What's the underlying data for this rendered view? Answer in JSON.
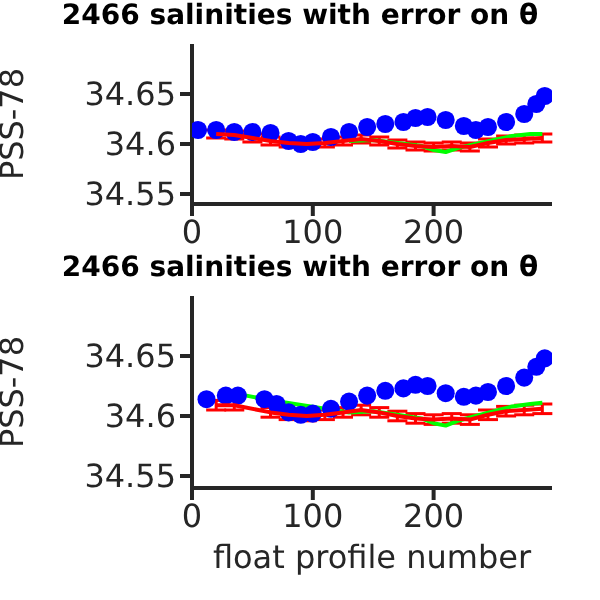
{
  "chart_data": [
    {
      "type": "line",
      "title": "2466 salinities with error on θ",
      "ylabel": "PSS-78",
      "xlim": [
        0,
        298
      ],
      "xticks": [
        0,
        100,
        200
      ],
      "ylim": [
        34.54,
        34.7
      ],
      "yticks": [
        34.55,
        34.6,
        34.65
      ],
      "grid": false,
      "legend": false,
      "series": [
        {
          "color": "#00ff00",
          "marker": "none",
          "x": [
            130,
            150,
            170,
            190,
            200,
            210,
            220,
            235,
            250,
            265,
            280,
            290
          ],
          "values": [
            34.603,
            34.604,
            34.601,
            34.598,
            34.594,
            34.592,
            34.596,
            34.6,
            34.604,
            34.608,
            34.61,
            34.61
          ]
        },
        {
          "type": "line",
          "color": "#ff0000",
          "marker": "none",
          "x": [
            20,
            35,
            50,
            65,
            80,
            95,
            110,
            125,
            140,
            155,
            170,
            185,
            200,
            215,
            230,
            245,
            260,
            275,
            290
          ],
          "values": [
            34.61,
            34.609,
            34.606,
            34.603,
            34.601,
            34.6,
            34.601,
            34.603,
            34.605,
            34.603,
            34.6,
            34.598,
            34.597,
            34.598,
            34.597,
            34.601,
            34.604,
            34.605,
            34.606
          ],
          "errors": [
            0.004,
            0.004,
            0.004,
            0.004,
            0.004,
            0.004,
            0.004,
            0.004,
            0.004,
            0.004,
            0.004,
            0.004,
            0.004,
            0.004,
            0.004,
            0.004,
            0.004,
            0.004,
            0.004
          ]
        },
        {
          "type": "scatter",
          "color": "#0000ff",
          "marker": "circle",
          "x": [
            5,
            20,
            35,
            50,
            65,
            80,
            90,
            100,
            115,
            130,
            145,
            160,
            175,
            185,
            195,
            210,
            225,
            235,
            245,
            260,
            275,
            285,
            292
          ],
          "values": [
            34.614,
            34.614,
            34.612,
            34.612,
            34.611,
            34.603,
            34.6,
            34.602,
            34.607,
            34.612,
            34.617,
            34.62,
            34.622,
            34.626,
            34.627,
            34.624,
            34.618,
            34.614,
            34.617,
            34.622,
            34.63,
            34.64,
            34.648
          ]
        }
      ]
    },
    {
      "type": "line",
      "title": "2466 salinities with error on θ",
      "xlabel": "float profile number",
      "ylabel": "PSS-78",
      "xlim": [
        0,
        298
      ],
      "xticks": [
        0,
        100,
        200
      ],
      "ylim": [
        34.54,
        34.7
      ],
      "yticks": [
        34.55,
        34.6,
        34.65
      ],
      "grid": false,
      "legend": false,
      "series": [
        {
          "color": "#00ff00",
          "marker": "none",
          "x": [
            30,
            45,
            60,
            130,
            150,
            170,
            190,
            200,
            210,
            220,
            235,
            250,
            265,
            280,
            290
          ],
          "values": [
            34.617,
            34.617,
            34.614,
            34.603,
            34.604,
            34.601,
            34.598,
            34.594,
            34.592,
            34.596,
            34.6,
            34.604,
            34.608,
            34.61,
            34.611
          ]
        },
        {
          "type": "line",
          "color": "#ff0000",
          "marker": "none",
          "x": [
            20,
            35,
            65,
            80,
            95,
            110,
            125,
            140,
            155,
            170,
            185,
            200,
            215,
            230,
            245,
            260,
            275,
            290
          ],
          "values": [
            34.609,
            34.609,
            34.603,
            34.601,
            34.6,
            34.601,
            34.603,
            34.605,
            34.603,
            34.6,
            34.598,
            34.597,
            34.598,
            34.597,
            34.601,
            34.604,
            34.605,
            34.606
          ],
          "errors": [
            0.004,
            0.004,
            0.004,
            0.004,
            0.004,
            0.004,
            0.004,
            0.004,
            0.004,
            0.004,
            0.004,
            0.004,
            0.004,
            0.004,
            0.004,
            0.004,
            0.004,
            0.004
          ]
        },
        {
          "type": "scatter",
          "color": "#0000ff",
          "marker": "circle",
          "x": [
            12,
            28,
            38,
            60,
            70,
            80,
            90,
            100,
            115,
            130,
            145,
            160,
            175,
            185,
            195,
            210,
            225,
            235,
            245,
            260,
            275,
            285,
            292
          ],
          "values": [
            34.614,
            34.617,
            34.617,
            34.614,
            34.61,
            34.603,
            34.601,
            34.602,
            34.606,
            34.612,
            34.617,
            34.621,
            34.623,
            34.626,
            34.625,
            34.619,
            34.616,
            34.617,
            34.62,
            34.625,
            34.632,
            34.641,
            34.648
          ]
        }
      ]
    }
  ]
}
